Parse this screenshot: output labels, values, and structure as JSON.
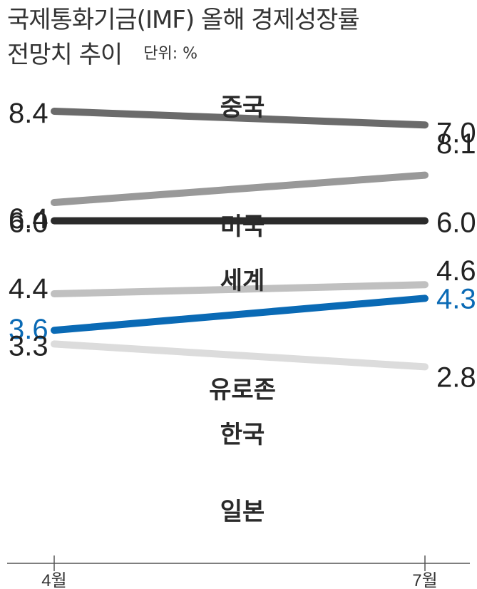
{
  "header": {
    "title_line1": "국제통화기금(IMF) 올해 경제성장률",
    "title_line2": "전망치 추이",
    "unit": "단위: %"
  },
  "chart_data": {
    "type": "line",
    "title": "국제통화기금(IMF) 올해 경제성장률 전망치 추이",
    "unit": "%",
    "x": [
      "4월",
      "7월"
    ],
    "series": [
      {
        "name": "중국",
        "values": [
          8.4,
          8.1
        ],
        "color": "#6b6b6b",
        "label_color": "#222222"
      },
      {
        "name": "미국",
        "values": [
          6.4,
          7.0
        ],
        "color": "#999999",
        "label_color": "#222222"
      },
      {
        "name": "세계",
        "values": [
          6.0,
          6.0
        ],
        "color": "#2b2b2b",
        "label_color": "#222222"
      },
      {
        "name": "유로존",
        "values": [
          4.4,
          4.6
        ],
        "color": "#c0c0c0",
        "label_color": "#222222"
      },
      {
        "name": "한국",
        "values": [
          3.6,
          4.3
        ],
        "color": "#0a6ab5",
        "label_color": "#0a6ab5"
      },
      {
        "name": "일본",
        "values": [
          3.3,
          2.8
        ],
        "color": "#dcdcdc",
        "label_color": "#222222"
      }
    ],
    "grid": false,
    "legend": "inline"
  }
}
